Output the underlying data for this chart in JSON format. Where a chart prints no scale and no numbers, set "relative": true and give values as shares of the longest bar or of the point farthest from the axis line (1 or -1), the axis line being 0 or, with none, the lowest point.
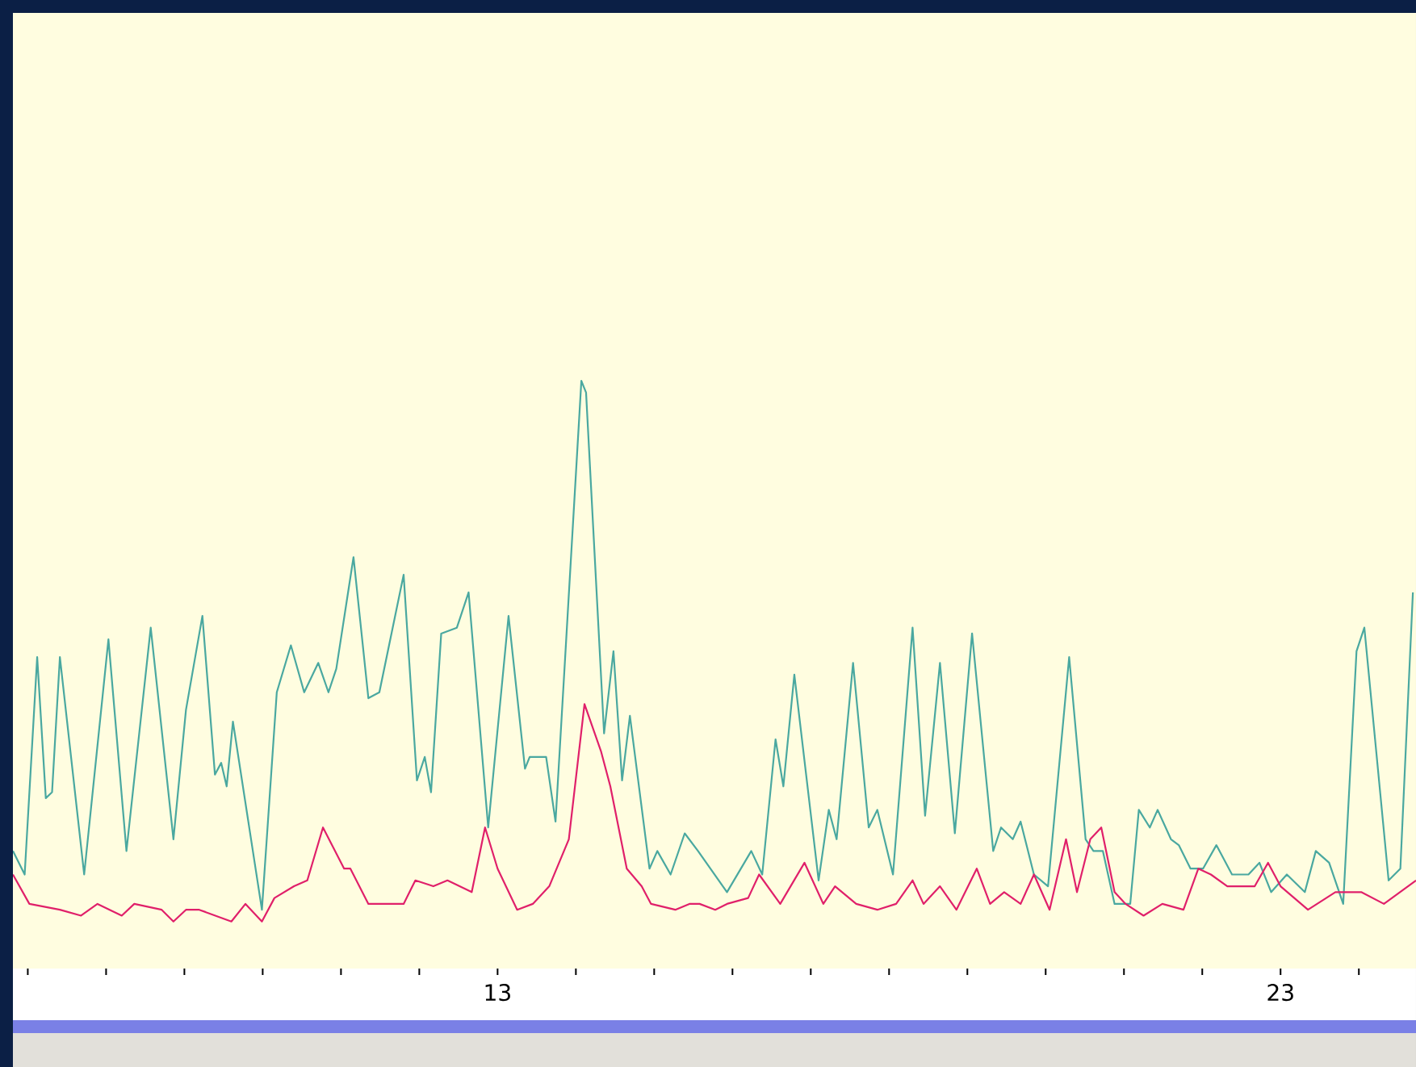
{
  "chart_data": {
    "type": "line",
    "relative": true,
    "tick_labels": "x",
    "marker": "none",
    "line_style": "solid",
    "xlim": [
      6.81,
      24.73
    ],
    "xticks": [
      {
        "value": 7,
        "label": null
      },
      {
        "value": 8,
        "label": null
      },
      {
        "value": 9,
        "label": null
      },
      {
        "value": 10,
        "label": null
      },
      {
        "value": 11,
        "label": null
      },
      {
        "value": 12,
        "label": null
      },
      13,
      {
        "value": 14,
        "label": null
      },
      {
        "value": 15,
        "label": null
      },
      {
        "value": 16,
        "label": null
      },
      {
        "value": 17,
        "label": null
      },
      {
        "value": 18,
        "label": null
      },
      {
        "value": 19,
        "label": null
      },
      {
        "value": 20,
        "label": null
      },
      {
        "value": 21,
        "label": null
      },
      {
        "value": 22,
        "label": null
      },
      23,
      {
        "value": 24,
        "label": null
      }
    ],
    "series": [
      {
        "color": "#4aa8a0",
        "x": [
          6.81,
          6.96,
          7.12,
          7.23,
          7.31,
          7.41,
          7.72,
          8.03,
          8.26,
          8.57,
          8.86,
          9.02,
          9.23,
          9.39,
          9.47,
          9.54,
          9.62,
          9.99,
          10.18,
          10.36,
          10.53,
          10.71,
          10.84,
          10.94,
          11.16,
          11.35,
          11.49,
          11.8,
          11.97,
          12.07,
          12.15,
          12.28,
          12.48,
          12.63,
          12.88,
          13.14,
          13.35,
          13.41,
          13.62,
          13.74,
          14.07,
          14.13,
          14.36,
          14.48,
          14.59,
          14.69,
          14.94,
          15.04,
          15.21,
          15.39,
          15.56,
          15.93,
          16.24,
          16.38,
          16.55,
          16.65,
          16.79,
          17.1,
          17.23,
          17.33,
          17.54,
          17.74,
          17.85,
          18.05,
          18.3,
          18.46,
          18.65,
          18.84,
          19.06,
          19.33,
          19.43,
          19.58,
          19.68,
          19.85,
          20.03,
          20.3,
          20.51,
          20.61,
          20.73,
          20.88,
          21.08,
          21.19,
          21.33,
          21.43,
          21.6,
          21.7,
          21.85,
          22.01,
          22.18,
          22.38,
          22.59,
          22.73,
          22.88,
          23.08,
          23.31,
          23.45,
          23.62,
          23.8,
          23.97,
          24.07,
          24.38,
          24.53,
          24.69
        ],
        "values": [
          0.2,
          0.16,
          0.53,
          0.29,
          0.3,
          0.53,
          0.16,
          0.56,
          0.2,
          0.58,
          0.22,
          0.44,
          0.6,
          0.33,
          0.35,
          0.31,
          0.42,
          0.1,
          0.47,
          0.55,
          0.47,
          0.52,
          0.47,
          0.51,
          0.7,
          0.46,
          0.47,
          0.67,
          0.32,
          0.36,
          0.3,
          0.57,
          0.58,
          0.64,
          0.24,
          0.6,
          0.34,
          0.36,
          0.36,
          0.25,
          1,
          0.98,
          0.4,
          0.54,
          0.32,
          0.43,
          0.17,
          0.2,
          0.16,
          0.23,
          0.2,
          0.13,
          0.2,
          0.16,
          0.39,
          0.31,
          0.5,
          0.15,
          0.27,
          0.22,
          0.52,
          0.24,
          0.27,
          0.16,
          0.58,
          0.26,
          0.52,
          0.23,
          0.57,
          0.2,
          0.24,
          0.22,
          0.25,
          0.16,
          0.14,
          0.53,
          0.22,
          0.2,
          0.2,
          0.11,
          0.11,
          0.27,
          0.24,
          0.27,
          0.22,
          0.21,
          0.17,
          0.17,
          0.21,
          0.16,
          0.16,
          0.18,
          0.13,
          0.16,
          0.13,
          0.2,
          0.18,
          0.11,
          0.54,
          0.58,
          0.15,
          0.17,
          0.64
        ]
      },
      {
        "color": "#e0206a",
        "x": [
          6.81,
          7.02,
          7.41,
          7.68,
          7.89,
          8.2,
          8.36,
          8.71,
          8.86,
          9.02,
          9.19,
          9.6,
          9.78,
          9.99,
          10.15,
          10.4,
          10.57,
          10.77,
          11.04,
          11.12,
          11.35,
          11.8,
          11.95,
          12.18,
          12.36,
          12.67,
          12.84,
          13.0,
          13.25,
          13.45,
          13.66,
          13.91,
          14.11,
          14.32,
          14.44,
          14.65,
          14.84,
          14.96,
          15.27,
          15.45,
          15.58,
          15.78,
          15.93,
          16.2,
          16.34,
          16.61,
          16.92,
          17.16,
          17.31,
          17.58,
          17.85,
          18.09,
          18.3,
          18.44,
          18.65,
          18.86,
          19.12,
          19.29,
          19.47,
          19.68,
          19.85,
          20.05,
          20.26,
          20.4,
          20.57,
          20.71,
          20.88,
          21.02,
          21.25,
          21.49,
          21.76,
          21.95,
          22.11,
          22.32,
          22.48,
          22.67,
          22.84,
          23.0,
          23.35,
          23.7,
          24.03,
          24.32,
          24.73
        ],
        "values": [
          0.16,
          0.11,
          0.1,
          0.09,
          0.11,
          0.09,
          0.11,
          0.1,
          0.08,
          0.1,
          0.1,
          0.08,
          0.11,
          0.08,
          0.12,
          0.14,
          0.15,
          0.24,
          0.17,
          0.17,
          0.11,
          0.11,
          0.15,
          0.14,
          0.15,
          0.13,
          0.24,
          0.17,
          0.1,
          0.11,
          0.14,
          0.22,
          0.45,
          0.37,
          0.31,
          0.17,
          0.14,
          0.11,
          0.1,
          0.11,
          0.11,
          0.1,
          0.11,
          0.12,
          0.16,
          0.11,
          0.18,
          0.11,
          0.14,
          0.11,
          0.1,
          0.11,
          0.15,
          0.11,
          0.14,
          0.1,
          0.17,
          0.11,
          0.13,
          0.11,
          0.16,
          0.1,
          0.22,
          0.13,
          0.22,
          0.24,
          0.13,
          0.11,
          0.09,
          0.11,
          0.1,
          0.17,
          0.16,
          0.14,
          0.14,
          0.14,
          0.18,
          0.14,
          0.1,
          0.13,
          0.13,
          0.11,
          0.15
        ]
      }
    ]
  }
}
